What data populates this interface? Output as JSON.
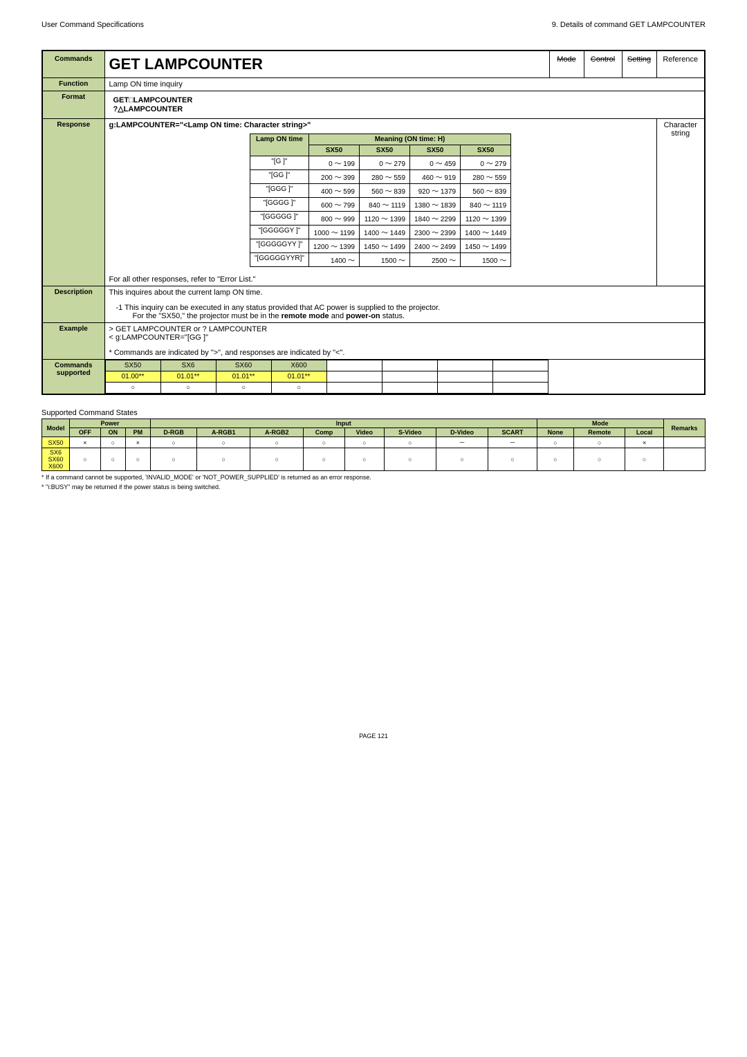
{
  "header": {
    "left": "User Command Specifications",
    "right": "9. Details of command  GET LAMPCOUNTER"
  },
  "main": {
    "labels": {
      "commands": "Commands",
      "function": "Function",
      "format": "Format",
      "response": "Response",
      "description": "Description",
      "example": "Example",
      "supported": "Commands supported"
    },
    "title": "GET LAMPCOUNTER",
    "tabs": {
      "mode": "Mode",
      "control": "Control",
      "setting": "Setting",
      "reference": "Reference"
    },
    "function_text": "Lamp ON time inquiry",
    "format_l1": "GET□LAMPCOUNTER",
    "format_l2": "?△LAMPCOUNTER",
    "response_hdr": "g:LAMPCOUNTER=\"<Lamp ON time: Character string>\"",
    "tbl": {
      "lamp_on": "Lamp ON time",
      "meaning": "Meaning (ON time: H)",
      "cols": [
        "SX50",
        "SX50",
        "SX50",
        "SX50"
      ],
      "rows": [
        [
          "\"[G             ]\"",
          "0  ～   199",
          "0  ～   279",
          "0  ～   459",
          "0  ～   279"
        ],
        [
          "\"[GG           ]\"",
          "200  ～   399",
          "280  ～   559",
          "460  ～   919",
          "280  ～   559"
        ],
        [
          "\"[GGG         ]\"",
          "400  ～   599",
          "560  ～   839",
          "920  ～ 1379",
          "560  ～   839"
        ],
        [
          "\"[GGGG       ]\"",
          "600  ～   799",
          "840  ～ 1119",
          "1380  ～ 1839",
          "840  ～ 1119"
        ],
        [
          "\"[GGGGG     ]\"",
          "800  ～   999",
          "1120  ～ 1399",
          "1840  ～ 2299",
          "1120  ～ 1399"
        ],
        [
          "\"[GGGGGY   ]\"",
          "1000  ～ 1199",
          "1400  ～ 1449",
          "2300  ～ 2399",
          "1400  ～ 1449"
        ],
        [
          "\"[GGGGGYY ]\"",
          "1200  ～ 1399",
          "1450  ～ 1499",
          "2400  ～ 2499",
          "1450  ～ 1499"
        ],
        [
          "\"[GGGGGYYR]\"",
          "1400 ～",
          "1500 ～",
          "2500 ～",
          "1500 ～"
        ]
      ],
      "after": "For all other responses, refer to \"Error List.\""
    },
    "side_note": "Character string",
    "desc_l1": "This inquires about the current lamp ON time.",
    "desc_l2": "-1  This inquiry can be executed in any status provided that AC power is supplied to the projector.",
    "desc_l3": "For the \"SX50,\" the projector must be in the remote mode and power-on status.",
    "ex_l1": " >  GET LAMPCOUNTER or ? LAMPCOUNTER",
    "ex_l2": " <  g:LAMPCOUNTER=\"[GG           ]\"",
    "ex_l3": "* Commands are indicated by \">\", and responses are indicated by \"<\".",
    "sup": {
      "models": [
        "SX50",
        "SX6",
        "SX60",
        "X600"
      ],
      "vers": [
        "01.00**",
        "01.01**",
        "01.01**",
        "01.01**"
      ],
      "marks": [
        "○",
        "○",
        "○",
        "○"
      ]
    }
  },
  "states": {
    "title": "Supported Command States",
    "hdr": [
      "Model",
      "Power",
      "Input",
      "Mode",
      "Remarks"
    ],
    "sub": [
      "OFF",
      "ON",
      "PM",
      "D-RGB",
      "A-RGB1",
      "A-RGB2",
      "Comp",
      "Video",
      "S-Video",
      "D-Video",
      "SCART",
      "None",
      "Remote",
      "Local"
    ],
    "rows": [
      {
        "m": "SX50",
        "c": [
          "×",
          "○",
          "×",
          "○",
          "○",
          "○",
          "○",
          "○",
          "○",
          "－",
          "－",
          "○",
          "○",
          "×",
          ""
        ]
      },
      {
        "m": "SX6\nSX60\nX600",
        "c": [
          "○",
          "○",
          "○",
          "○",
          "○",
          "○",
          "○",
          "○",
          "○",
          "○",
          "○",
          "○",
          "○",
          "○",
          ""
        ]
      }
    ],
    "foot1": "* If a command cannot be supported, 'INVALID_MODE' or 'NOT_POWER_SUPPLIED' is returned as an error response.",
    "foot2": "* \"i:BUSY\" may be returned if the power status is being switched."
  },
  "page": "PAGE 121"
}
